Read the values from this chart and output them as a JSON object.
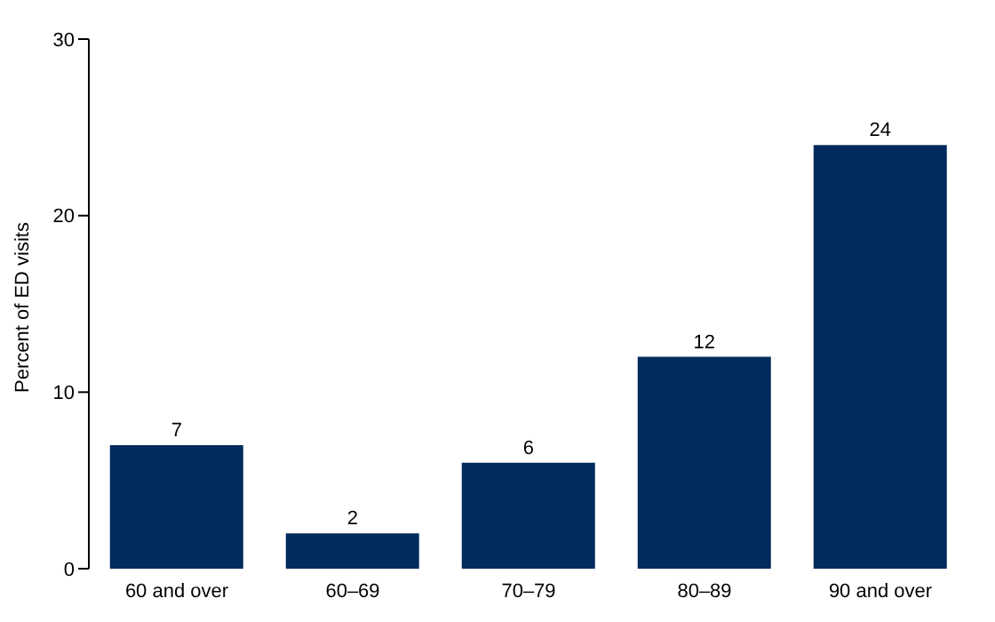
{
  "chart_data": {
    "type": "bar",
    "ylabel": "Percent of ED visits",
    "categories": [
      "60 and over",
      "60–69",
      "70–79",
      "80–89",
      "90 and over"
    ],
    "values": [
      7,
      2,
      6,
      12,
      24
    ],
    "color": "#002b5c",
    "ylim": [
      0,
      30
    ],
    "yticks": [
      0,
      10,
      20,
      30
    ],
    "grid": false,
    "data_labels": true
  }
}
